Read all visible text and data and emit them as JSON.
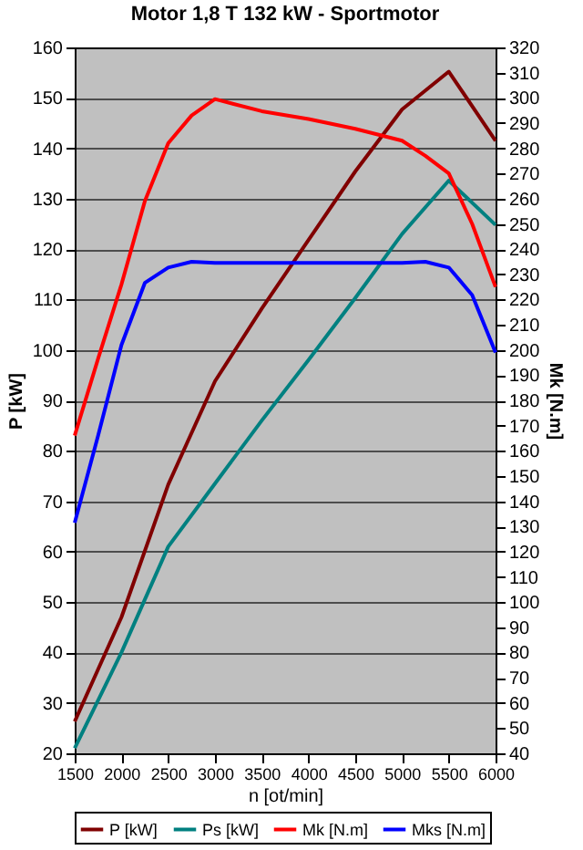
{
  "chart_data": {
    "type": "line",
    "title": "Motor 1,8 T 132 kW - Sportmotor",
    "xlabel": "n [ot/min]",
    "ylabel": "P [kW]",
    "y2label": "Mk [N.m]",
    "xlim": [
      1500,
      6000
    ],
    "xticks": [
      1500,
      2000,
      2500,
      3000,
      3500,
      4000,
      4500,
      5000,
      5500,
      6000
    ],
    "ylim": [
      20,
      160
    ],
    "yticks": [
      20,
      30,
      40,
      50,
      60,
      70,
      80,
      90,
      100,
      110,
      120,
      130,
      140,
      150,
      160
    ],
    "y2lim": [
      40,
      320
    ],
    "y2ticks": [
      40,
      50,
      60,
      70,
      80,
      90,
      100,
      110,
      120,
      130,
      140,
      150,
      160,
      170,
      180,
      190,
      200,
      210,
      220,
      230,
      240,
      250,
      260,
      270,
      280,
      290,
      300,
      310,
      320
    ],
    "grid": "y",
    "legend": "bottom",
    "series": [
      {
        "name": "P [kW]",
        "color": "#800000",
        "x": [
          1500,
          2000,
          2500,
          3000,
          3500,
          4000,
          4500,
          5000,
          5500,
          6000
        ],
        "values": [
          26.3,
          47,
          73.3,
          93.8,
          108.2,
          121.8,
          135.4,
          147.7,
          155.2,
          141.5
        ]
      },
      {
        "name": "Ps [kW]",
        "color": "#008080",
        "x": [
          1500,
          2000,
          2500,
          3000,
          3500,
          4000,
          4500,
          5000,
          5500,
          6000
        ],
        "values": [
          21,
          40,
          61,
          73.5,
          86,
          98,
          110.3,
          123,
          133.6,
          124.8
        ]
      },
      {
        "name": "Mk [N.m]",
        "color": "#ff0000",
        "axis": "y2",
        "x": [
          1500,
          1750,
          2000,
          2250,
          2500,
          2750,
          3000,
          3500,
          4000,
          4500,
          5000,
          5250,
          5500,
          5750,
          6000
        ],
        "values": [
          166,
          196.5,
          226,
          259,
          282,
          293,
          299.5,
          294.7,
          291.6,
          287.7,
          283,
          277,
          270,
          250,
          225
        ]
      },
      {
        "name": "Mks [N.m]",
        "color": "#0000ff",
        "axis": "y2",
        "x": [
          1500,
          1750,
          2000,
          2250,
          2500,
          2750,
          3000,
          3500,
          4000,
          4500,
          5000,
          5250,
          5500,
          5750,
          6000
        ],
        "values": [
          131.4,
          166,
          202,
          226.6,
          232.7,
          235,
          234.5,
          234.5,
          234.5,
          234.5,
          234.5,
          235,
          232.7,
          221.8,
          199
        ]
      }
    ]
  }
}
